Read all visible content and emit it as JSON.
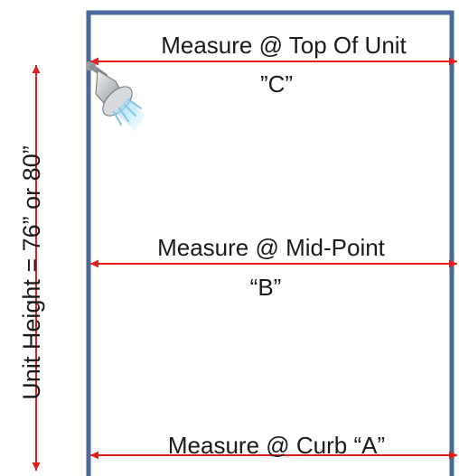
{
  "colors": {
    "frame": "#4a6a99",
    "arrow": "#e02020",
    "text": "#1a1a1a"
  },
  "height_label": "Unit Height = 76” or 80”",
  "measures": {
    "top": {
      "line1": "Measure @ Top Of Unit",
      "line2": "”C”"
    },
    "mid": {
      "line1": "Measure @ Mid-Point",
      "line2": "“B”"
    },
    "curb": {
      "line1": "Measure @ Curb “A”"
    }
  },
  "icons": {
    "shower_head": "shower-head-icon"
  }
}
